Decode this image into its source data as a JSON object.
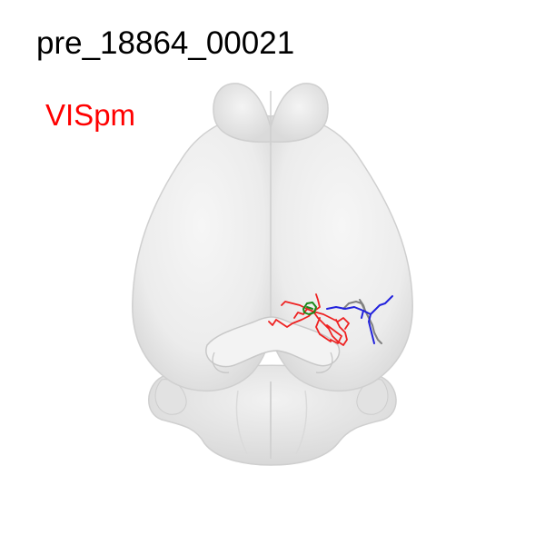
{
  "title": "pre_18864_00021",
  "region": {
    "label": "VISpm",
    "color": "#ff0000"
  },
  "neuron": {
    "colors": {
      "soma": "#1a8a1a",
      "dendrite": "#ee2222",
      "axon": "#2222dd",
      "other": "#808080"
    }
  }
}
